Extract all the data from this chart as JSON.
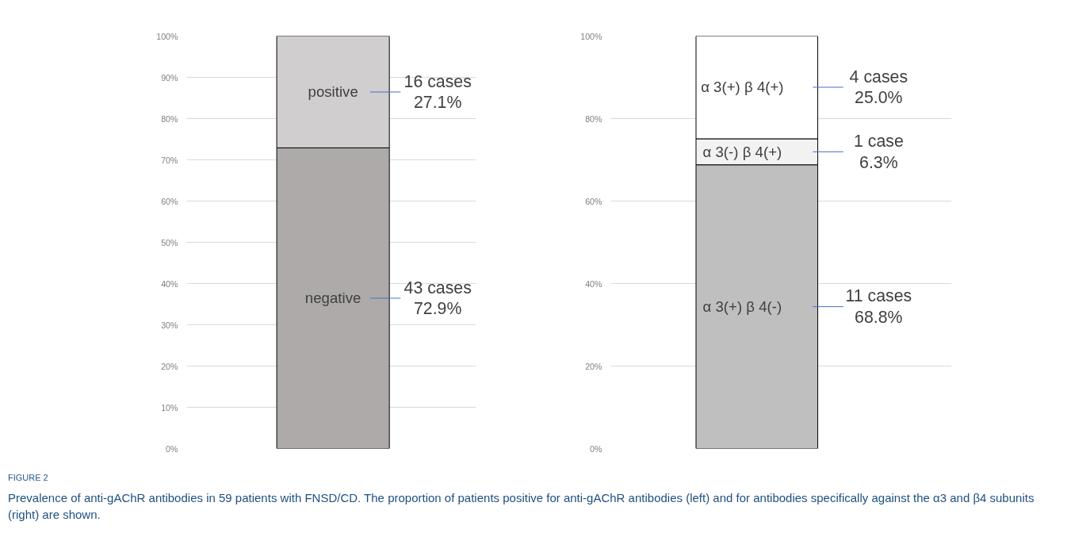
{
  "chart_data": [
    {
      "type": "bar",
      "stacked": true,
      "categories": [
        null
      ],
      "ylim": [
        0,
        100
      ],
      "yticks": [
        {
          "value": 0,
          "label": "0%"
        },
        {
          "value": 10,
          "label": "10%"
        },
        {
          "value": 20,
          "label": "20%"
        },
        {
          "value": 30,
          "label": "30%"
        },
        {
          "value": 40,
          "label": "40%"
        },
        {
          "value": 50,
          "label": "50%"
        },
        {
          "value": 60,
          "label": "60%"
        },
        {
          "value": 70,
          "label": "70%"
        },
        {
          "value": 80,
          "label": "80%"
        },
        {
          "value": 90,
          "label": "90%"
        },
        {
          "value": 100,
          "label": "100%"
        }
      ],
      "grid": "y",
      "tick_labels": "y",
      "series": [
        {
          "name": "negative",
          "color": "#aeaaaa",
          "values": [
            72.9
          ],
          "value_labels": [
            "43 cases\n72.9%"
          ]
        },
        {
          "name": "positive",
          "color": "#d0cece",
          "values": [
            27.1
          ],
          "value_labels": [
            "16 cases\n27.1%"
          ]
        }
      ],
      "annotations": [
        "FIGURE 2",
        "Prevalence of anti-gAChR antibodies in 59 patients with FNSD/CD. The proportion of patients positive for anti-gAChR antibodies (left) and for antibodies specifically against the α3 and β4 subunits (right) are shown."
      ]
    },
    {
      "type": "bar",
      "stacked": true,
      "categories": [
        null
      ],
      "ylim": [
        0,
        100
      ],
      "yticks": [
        {
          "value": 0,
          "label": "0%"
        },
        {
          "value": 20,
          "label": "20%"
        },
        {
          "value": 40,
          "label": "40%"
        },
        {
          "value": 60,
          "label": "60%"
        },
        {
          "value": 80,
          "label": "80%"
        },
        {
          "value": 100,
          "label": "100%"
        }
      ],
      "grid": "y",
      "tick_labels": "y",
      "series": [
        {
          "name": "α 3(+) β 4(-)",
          "color": "#bfbfbf",
          "values": [
            68.8
          ],
          "value_labels": [
            "11 cases\n68.8%"
          ]
        },
        {
          "name": "α 3(-) β 4(+)",
          "color": "#f2f2f2",
          "values": [
            6.3
          ],
          "value_labels": [
            "1 case\n6.3%"
          ]
        },
        {
          "name": "α 3(+) β 4(+)",
          "color": "#ffffff",
          "values": [
            25.0
          ],
          "value_labels": [
            "4 cases\n25.0%"
          ]
        }
      ]
    }
  ]
}
